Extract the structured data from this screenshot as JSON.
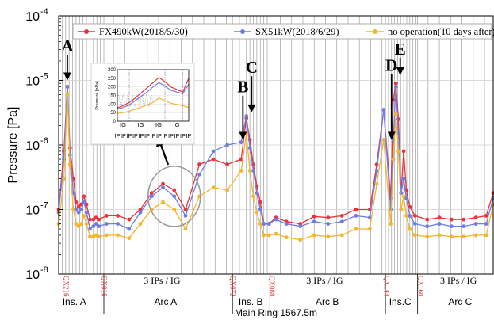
{
  "chart_data": {
    "type": "line",
    "ylabel": "Pressure [Pa]",
    "xlabel": "Main Ring 1567.5m",
    "yscale": "log",
    "ylim": [
      1e-08,
      0.0001
    ],
    "xlim": [
      0,
      100
    ],
    "ytick_labels": [
      {
        "exp": -8,
        "base": "10",
        "sup": "-8"
      },
      {
        "exp": -7,
        "base": "10",
        "sup": "-7"
      },
      {
        "exp": -6,
        "base": "10",
        "sup": "-6"
      },
      {
        "exp": -5,
        "base": "10",
        "sup": "-5"
      },
      {
        "exp": -4,
        "base": "10",
        "sup": "-4"
      }
    ],
    "legend": {
      "placement": "top"
    },
    "series": [
      {
        "name": "FX490kW(2018/5/30)",
        "color": "#e8333a",
        "x": [
          0,
          1.2,
          2,
          2.6,
          3.4,
          4,
          4.6,
          5.2,
          5.8,
          6.4,
          7.2,
          8,
          8.6,
          9.2,
          11,
          13.6,
          16.2,
          18.8,
          21.4,
          24,
          26.6,
          29.2,
          32.4,
          35.6,
          38.8,
          42,
          43.2,
          44,
          44.8,
          45.6,
          46.4,
          47.2,
          48.4,
          50,
          52.4,
          55.6,
          58.8,
          62,
          65.2,
          68.4,
          71.6,
          73.2,
          74.8,
          76.4,
          77,
          77.6,
          78.2,
          78.8,
          79.4,
          80,
          80.8,
          82,
          84.8,
          87.6,
          90.4,
          93.2,
          96,
          98.4,
          100
        ],
        "y": [
          1e-07,
          8e-07,
          8e-06,
          9e-07,
          3e-07,
          1.3e-07,
          1.1e-07,
          1.2e-07,
          1.6e-07,
          1.2e-07,
          7e-08,
          7e-08,
          7.5e-08,
          7e-08,
          8e-08,
          8e-08,
          7e-08,
          1e-07,
          1.8e-07,
          2.5e-07,
          2e-07,
          1e-07,
          5e-07,
          6e-07,
          5e-07,
          6e-07,
          2.6e-06,
          1.2e-06,
          5e-07,
          2.3e-07,
          1.3e-07,
          6e-08,
          6e-08,
          7.5e-08,
          6.5e-08,
          6e-08,
          7.8e-08,
          7.5e-08,
          8e-08,
          1e-07,
          1e-07,
          5e-07,
          3.5e-06,
          1.5e-07,
          5e-06,
          9e-06,
          2.5e-06,
          1.8e-07,
          8e-07,
          2e-07,
          1.1e-07,
          8e-08,
          7e-08,
          7.5e-08,
          7e-08,
          7e-08,
          7.5e-08,
          8e-08,
          1.8e-07
        ]
      },
      {
        "name": "SX51kW(2018/6/29)",
        "color": "#6b7de8",
        "x": [
          0,
          1.2,
          2,
          2.6,
          3.4,
          4,
          4.6,
          5.2,
          5.8,
          6.4,
          7.2,
          8,
          8.6,
          9.2,
          11,
          13.6,
          16.2,
          18.8,
          21.4,
          24,
          26.6,
          29.2,
          32.4,
          35.6,
          38.8,
          42,
          43.2,
          44,
          44.8,
          45.6,
          46.4,
          47.2,
          48.4,
          50,
          52.4,
          55.6,
          58.8,
          62,
          65.2,
          68.4,
          71.6,
          73.2,
          74.8,
          76.4,
          77,
          77.6,
          78.2,
          78.8,
          79.4,
          80,
          80.8,
          82,
          84.8,
          87.6,
          90.4,
          93.2,
          96,
          98.4,
          100
        ],
        "y": [
          9e-08,
          6e-07,
          8e-06,
          7e-07,
          1.8e-07,
          1e-07,
          9e-08,
          1e-07,
          1.3e-07,
          9e-08,
          5e-08,
          5.5e-08,
          6e-08,
          5.5e-08,
          6e-08,
          6e-08,
          5e-08,
          9e-08,
          1.6e-07,
          2.2e-07,
          1.6e-07,
          8e-08,
          3.5e-07,
          8e-07,
          1e-06,
          1.1e-06,
          2.8e-06,
          9e-07,
          4e-07,
          1.8e-07,
          1e-07,
          6e-08,
          6e-08,
          7e-08,
          6e-08,
          5.5e-08,
          6.5e-08,
          6e-08,
          6.5e-08,
          8e-08,
          7.5e-08,
          4e-07,
          3.5e-06,
          1e-07,
          1.2e-06,
          8e-06,
          1.5e-06,
          1.8e-07,
          3e-07,
          1.5e-07,
          8e-08,
          6e-08,
          5.5e-08,
          6e-08,
          5.5e-08,
          5.5e-08,
          6e-08,
          6e-08,
          1.5e-07
        ]
      },
      {
        "name": "no operation(10 days after)",
        "color": "#f5b52e",
        "x": [
          0,
          1.2,
          2,
          2.6,
          3.4,
          4,
          4.6,
          5.2,
          5.8,
          6.4,
          7.2,
          8,
          8.6,
          9.2,
          11,
          13.6,
          16.2,
          18.8,
          21.4,
          24,
          26.6,
          29.2,
          32.4,
          35.6,
          38.8,
          42,
          43.2,
          44,
          44.8,
          45.6,
          46.4,
          47.2,
          48.4,
          50,
          52.4,
          55.6,
          58.8,
          62,
          65.2,
          68.4,
          71.6,
          73.2,
          74.8,
          76.4,
          77,
          77.6,
          78.2,
          78.8,
          79.4,
          80,
          80.8,
          82,
          84.8,
          87.6,
          90.4,
          93.2,
          96,
          98.4,
          100
        ],
        "y": [
          6e-08,
          3e-07,
          6e-06,
          5e-07,
          1e-07,
          6e-08,
          5.5e-08,
          6e-08,
          8e-08,
          6e-08,
          3.8e-08,
          3.8e-08,
          4e-08,
          3.8e-08,
          4e-08,
          4e-08,
          3.6e-08,
          6e-08,
          1e-07,
          1.3e-07,
          1e-07,
          5e-08,
          1.6e-07,
          2.2e-07,
          2e-07,
          4e-07,
          1.5e-06,
          4e-07,
          1.6e-07,
          9e-08,
          6e-08,
          4e-08,
          4e-08,
          4.2e-08,
          3.7e-08,
          3.4e-08,
          4e-08,
          3.8e-08,
          4e-08,
          5e-08,
          5e-08,
          2.5e-07,
          1.2e-06,
          6e-08,
          6e-07,
          3e-06,
          8e-07,
          1e-07,
          1.6e-07,
          8e-08,
          5e-08,
          4e-08,
          3.8e-08,
          4e-08,
          3.8e-08,
          3.8e-08,
          4e-08,
          4e-08,
          1.2e-07
        ]
      }
    ],
    "section_labels": [
      {
        "text": "Ins. A",
        "x": 3.6
      },
      {
        "text": "Arc A",
        "x": 24.6
      },
      {
        "text": "Ins. B",
        "x": 44.2
      },
      {
        "text": "Arc B",
        "x": 61.8
      },
      {
        "text": "Ins.C",
        "x": 78.6
      },
      {
        "text": "Arc C",
        "x": 92.4
      }
    ],
    "ig_labels": [
      {
        "text": "3 IPs / IG",
        "x": 23.8
      },
      {
        "text": "3 IPs / IG",
        "x": 61.2
      },
      {
        "text": "3 IPs / IG",
        "x": 92.0
      }
    ],
    "quad_labels": [
      {
        "text": "QX216",
        "x": 0.6
      },
      {
        "text": "QX016",
        "x": 9.4
      },
      {
        "text": "QX072",
        "x": 39.0
      },
      {
        "text": "QX088",
        "x": 48.0
      },
      {
        "text": "QX144",
        "x": 74.4
      },
      {
        "text": "QX160",
        "x": 82.2
      }
    ],
    "section_bounds": [
      10.4,
      40.0,
      48.6,
      75.2,
      82.6
    ],
    "gridlines_x": [
      0.8,
      1.6,
      2.4,
      3.2,
      4.0,
      4.8,
      5.6,
      6.4,
      7.2,
      8.0,
      8.8,
      9.6,
      10.4,
      12.6,
      15.2,
      17.8,
      20.4,
      23.0,
      25.6,
      28.2,
      30.8,
      33.4,
      36.0,
      38.6,
      40.0,
      40.8,
      41.6,
      42.4,
      43.2,
      44.0,
      44.8,
      45.6,
      46.4,
      47.2,
      48.0,
      48.6,
      51.0,
      53.6,
      56.2,
      58.8,
      61.4,
      64.0,
      66.6,
      69.2,
      71.8,
      74.4,
      75.2,
      75.9,
      76.6,
      77.3,
      78.0,
      78.7,
      79.4,
      80.1,
      80.8,
      81.5,
      82.2,
      82.6,
      85.0,
      87.6,
      90.2,
      92.8,
      95.4,
      98.0
    ],
    "annotations": [
      {
        "text": "A",
        "x": 2.0,
        "y_text": 2.8e-05,
        "y_arrow": 1e-05
      },
      {
        "text": "B",
        "x": 42.4,
        "y_text": 6.5e-06,
        "y_arrow": 1.2e-06
      },
      {
        "text": "C",
        "x": 44.4,
        "y_text": 1.3e-05,
        "y_arrow": 3.2e-06
      },
      {
        "text": "D",
        "x": 76.6,
        "y_text": 1.4e-05,
        "y_arrow": 1.2e-06
      },
      {
        "text": "E",
        "x": 78.6,
        "y_text": 2.5e-05,
        "y_arrow": 1.2e-05
      }
    ],
    "inset": {
      "ylabel": "Pressure [nPa]",
      "ylim": [
        0,
        300
      ],
      "yticks": [
        0,
        50,
        100,
        150,
        200,
        250,
        300
      ],
      "ip_labels": [
        "IP",
        "IP",
        "IP",
        "IP",
        "IP",
        "IP",
        "IP",
        "IP",
        "IP",
        "IP",
        "IP",
        "IP",
        "IP"
      ],
      "ig_labels": [
        "IG",
        "IG",
        "IG",
        "IG"
      ],
      "series": [
        {
          "name": "FX490kW(2018/5/30)",
          "color": "#e8333a",
          "x": [
            0,
            1,
            2,
            3,
            4,
            5,
            6,
            7,
            8,
            9,
            10,
            11,
            12
          ],
          "y": [
            78,
            90,
            110,
            135,
            165,
            195,
            225,
            255,
            230,
            200,
            185,
            170,
            250
          ]
        },
        {
          "name": "SX51kW(2018/6/29)",
          "color": "#6b7de8",
          "x": [
            0,
            1,
            2,
            3,
            4,
            5,
            6,
            7,
            8,
            9,
            10,
            11,
            12
          ],
          "y": [
            72,
            80,
            95,
            120,
            145,
            170,
            200,
            225,
            205,
            180,
            170,
            160,
            215
          ]
        },
        {
          "name": "no operation(10 days after)",
          "color": "#f5b52e",
          "x": [
            0,
            1,
            2,
            3,
            4,
            5,
            6,
            7,
            8,
            9,
            10,
            11,
            12
          ],
          "y": [
            45,
            50,
            58,
            70,
            82,
            95,
            110,
            135,
            120,
            105,
            98,
            90,
            80
          ]
        }
      ]
    }
  }
}
